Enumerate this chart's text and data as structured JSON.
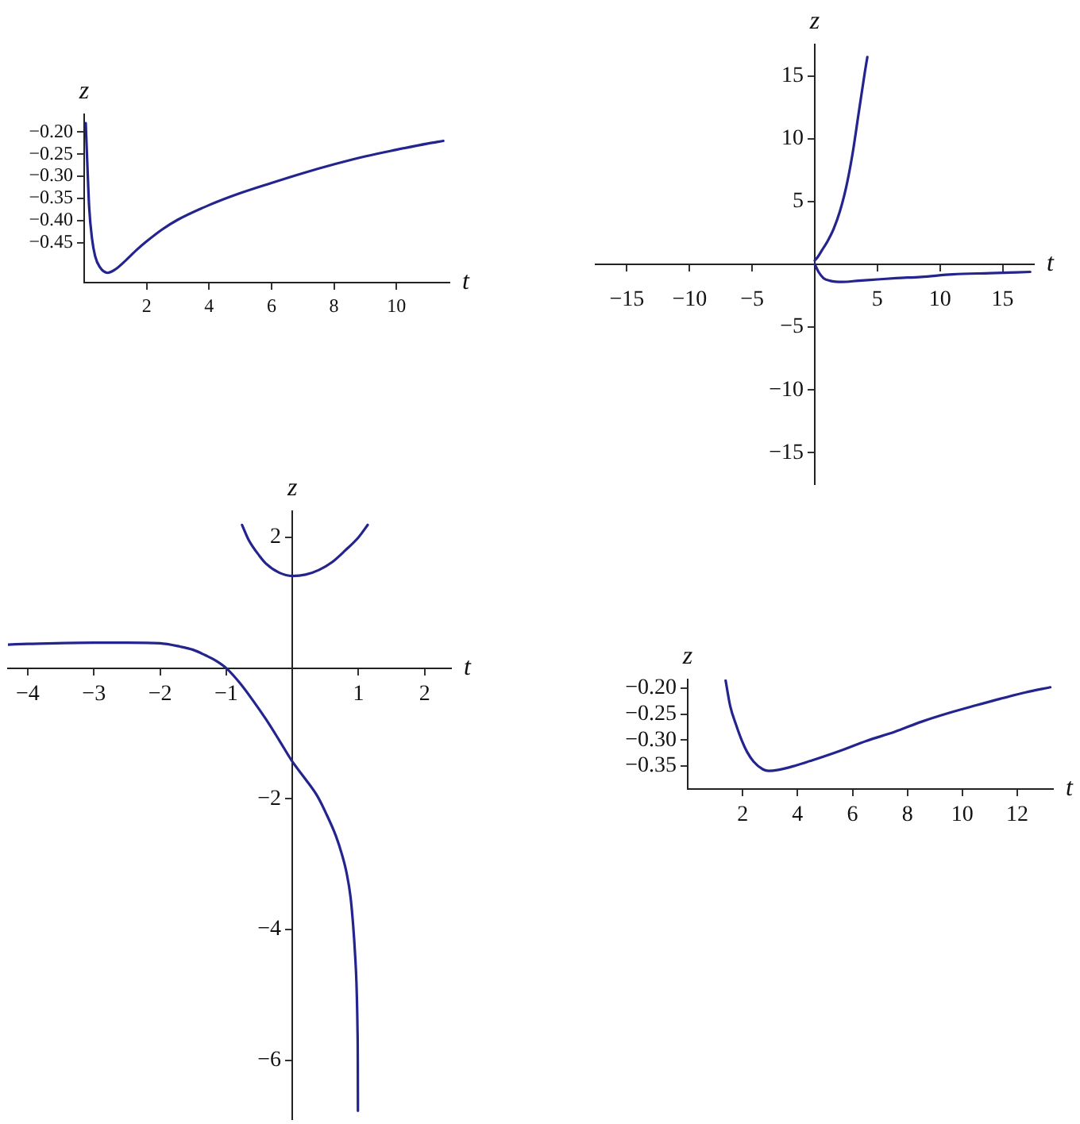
{
  "chart_data": [
    {
      "type": "line",
      "xlabel": "t",
      "ylabel": "z",
      "xlim": [
        0,
        11.7
      ],
      "ylim": [
        -0.54,
        -0.16
      ],
      "xticks": [
        2,
        4,
        6,
        8,
        10
      ],
      "yticks": [
        {
          "value": -0.2,
          "label": "−0.20"
        },
        {
          "value": -0.25,
          "label": "−0.25"
        },
        {
          "value": -0.3,
          "label": "−0.30"
        },
        {
          "value": -0.35,
          "label": "−0.35"
        },
        {
          "value": -0.4,
          "label": "−0.40"
        },
        {
          "value": -0.45,
          "label": "−0.45"
        }
      ],
      "series": [
        {
          "color": "#24248f",
          "x": [
            0.05,
            0.1,
            0.16,
            0.25,
            0.35,
            0.5,
            0.75,
            1,
            1.33,
            1.7,
            2,
            2.5,
            3,
            4,
            5,
            6,
            7,
            8,
            9,
            10,
            11,
            11.5
          ],
          "values": [
            -0.18,
            -0.27,
            -0.37,
            -0.44,
            -0.48,
            -0.505,
            -0.518,
            -0.51,
            -0.49,
            -0.465,
            -0.447,
            -0.42,
            -0.398,
            -0.365,
            -0.338,
            -0.315,
            -0.293,
            -0.273,
            -0.255,
            -0.24,
            -0.226,
            -0.22
          ]
        }
      ]
    },
    {
      "type": "line",
      "xlabel": "t",
      "ylabel": "z",
      "xlim": [
        -17.5,
        17.5
      ],
      "ylim": [
        -17.5,
        17.5
      ],
      "xticks": [
        {
          "value": -15,
          "label": "−15"
        },
        {
          "value": -10,
          "label": "−10"
        },
        {
          "value": -5,
          "label": "−5"
        },
        5,
        10,
        15
      ],
      "yticks": [
        {
          "value": -15,
          "label": "−15"
        },
        {
          "value": -10,
          "label": "−10"
        },
        {
          "value": -5,
          "label": "−5"
        },
        5,
        10,
        15
      ],
      "series": [
        {
          "color": "#24248f",
          "x": [
            0,
            0.25,
            0.5,
            0.75,
            1,
            1.5,
            2,
            2.5,
            3,
            3.5,
            4,
            4.2
          ],
          "values": [
            0.3,
            0.6,
            1,
            1.4,
            1.8,
            2.8,
            4.2,
            6.1,
            8.7,
            12,
            15.3,
            16.5
          ]
        },
        {
          "color": "#24248f",
          "x": [
            0,
            0.3,
            0.7,
            1.2,
            2.2,
            3.5,
            5,
            6.5,
            8.5,
            11,
            14,
            17.2
          ],
          "values": [
            0,
            -0.6,
            -1.1,
            -1.3,
            -1.4,
            -1.3,
            -1.2,
            -1.1,
            -1.0,
            -0.8,
            -0.7,
            -0.6
          ]
        }
      ]
    },
    {
      "type": "line",
      "xlabel": "t",
      "ylabel": "z",
      "xlim": [
        -4.3,
        2.4
      ],
      "ylim": [
        -6.9,
        2.4
      ],
      "xticks": [
        {
          "value": -4,
          "label": "−4"
        },
        {
          "value": -3,
          "label": "−3"
        },
        {
          "value": -2,
          "label": "−2"
        },
        {
          "value": -1,
          "label": "−1"
        },
        1,
        2
      ],
      "yticks": [
        {
          "value": -6,
          "label": "−6"
        },
        {
          "value": -4,
          "label": "−4"
        },
        {
          "value": -2,
          "label": "−2"
        },
        2
      ],
      "series": [
        {
          "color": "#24248f",
          "x": [
            -0.76,
            -0.66,
            -0.5,
            -0.4,
            -0.2,
            0,
            0.2,
            0.4,
            0.6,
            0.8,
            1,
            1.14
          ],
          "values": [
            2.19,
            1.96,
            1.72,
            1.6,
            1.46,
            1.41,
            1.43,
            1.5,
            1.62,
            1.8,
            2,
            2.19
          ]
        },
        {
          "color": "#24248f",
          "x": [
            -4.3,
            -4,
            -3,
            -2.5,
            -2,
            -1.7,
            -1.5,
            -1.3,
            -1.15,
            -1,
            -0.8,
            -0.62,
            -0.4,
            -0.2,
            0,
            0.2,
            0.38,
            0.5,
            0.66,
            0.75,
            0.82,
            0.88,
            0.92,
            0.95,
            0.97,
            0.985,
            0.99,
            0.992
          ],
          "values": [
            0.36,
            0.37,
            0.39,
            0.39,
            0.38,
            0.33,
            0.28,
            0.19,
            0.11,
            0,
            -0.22,
            -0.46,
            -0.78,
            -1.1,
            -1.43,
            -1.7,
            -1.96,
            -2.2,
            -2.57,
            -2.85,
            -3.13,
            -3.5,
            -3.94,
            -4.4,
            -4.83,
            -5.5,
            -6,
            -6.77
          ]
        }
      ]
    },
    {
      "type": "line",
      "xlabel": "t",
      "ylabel": "z",
      "xlim": [
        0,
        13.3
      ],
      "ylim": [
        -0.395,
        -0.183
      ],
      "xticks": [
        2,
        4,
        6,
        8,
        10,
        12
      ],
      "yticks": [
        {
          "value": -0.2,
          "label": "−0.20"
        },
        {
          "value": -0.25,
          "label": "−0.25"
        },
        {
          "value": -0.3,
          "label": "−0.30"
        },
        {
          "value": -0.35,
          "label": "−0.35"
        }
      ],
      "series": [
        {
          "color": "#24248f",
          "x": [
            1.38,
            1.55,
            1.77,
            2,
            2.16,
            2.4,
            2.74,
            2.95,
            3.3,
            3.9,
            4.5,
            5.6,
            6.5,
            7.55,
            8.5,
            9.5,
            10.5,
            11.4,
            12.3,
            13.2
          ],
          "values": [
            -0.185,
            -0.235,
            -0.272,
            -0.305,
            -0.323,
            -0.342,
            -0.357,
            -0.36,
            -0.358,
            -0.35,
            -0.34,
            -0.32,
            -0.302,
            -0.284,
            -0.265,
            -0.248,
            -0.233,
            -0.22,
            -0.208,
            -0.198
          ]
        }
      ]
    }
  ]
}
